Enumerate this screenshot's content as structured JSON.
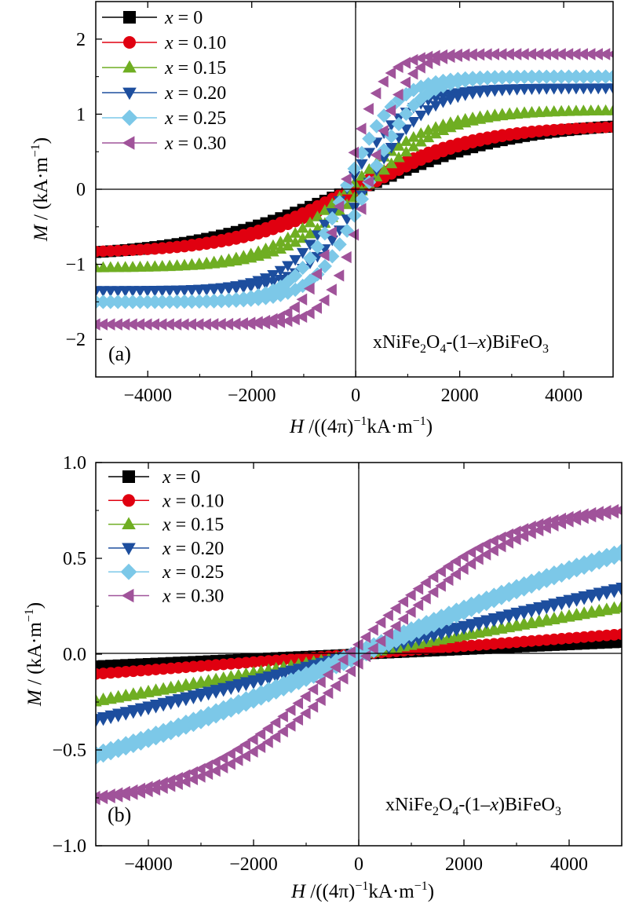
{
  "chart_data": [
    {
      "type": "scatter",
      "panel_label": "(a)",
      "annotation": {
        "base": "xNiFe",
        "s1": "2",
        "mid": "O",
        "s2": "4",
        "tail1": "-(1–",
        "xvar": "x",
        "tail2": ")BiFeO",
        "s3": "3"
      },
      "xlabel": {
        "var": "H",
        "text": " /((4π)",
        "sup": "−1",
        "unit": "kA·m",
        "unit_sup": "−1",
        "close": ")"
      },
      "ylabel": {
        "var": "M",
        "text": " / (kA·m",
        "sup": "−1",
        "close": ")"
      },
      "xlim": [
        -5000,
        4950
      ],
      "ylim": [
        -2.5,
        2.5
      ],
      "xticks": [
        -4000,
        -2000,
        0,
        2000,
        4000
      ],
      "xtick_labels": [
        "−4000",
        "−2000",
        "0",
        "2000",
        "4000"
      ],
      "yticks": [
        -2,
        -1,
        0,
        1,
        2
      ],
      "ytick_labels": [
        "−2",
        "−1",
        "0",
        "1",
        "2"
      ],
      "legend_position": "top-left",
      "series": [
        {
          "name": "x = 0",
          "legend_var": "x",
          "legend_value": " = 0",
          "color": "#000000",
          "marker": "square",
          "Ms": 0.9,
          "h0": 3000,
          "Hc": 100
        },
        {
          "name": "x = 0.10",
          "legend_var": "x",
          "legend_value": " = 0.10",
          "color": "#e00010",
          "marker": "circle",
          "Ms": 0.85,
          "h0": 2300,
          "Hc": 130
        },
        {
          "name": "x = 0.15",
          "legend_var": "x",
          "legend_value": " = 0.15",
          "color": "#6fae22",
          "marker": "triangle-up",
          "Ms": 1.05,
          "h0": 1600,
          "Hc": 150
        },
        {
          "name": "x = 0.20",
          "legend_var": "x",
          "legend_value": " = 0.20",
          "color": "#1d4e9e",
          "marker": "triangle-down",
          "Ms": 1.35,
          "h0": 1150,
          "Hc": 180
        },
        {
          "name": "x = 0.25",
          "legend_var": "x",
          "legend_value": " = 0.25",
          "color": "#7cc8e8",
          "marker": "diamond",
          "Ms": 1.5,
          "h0": 950,
          "Hc": 200
        },
        {
          "name": "x = 0.30",
          "legend_var": "x",
          "legend_value": " = 0.30",
          "color": "#a0539a",
          "marker": "triangle-left",
          "Ms": 1.8,
          "h0": 700,
          "Hc": 220
        }
      ]
    },
    {
      "type": "scatter",
      "panel_label": "(b)",
      "annotation": {
        "base": "xNiFe",
        "s1": "2",
        "mid": "O",
        "s2": "4",
        "tail1": "-(1–",
        "xvar": "x",
        "tail2": ")BiFeO",
        "s3": "3"
      },
      "xlabel": {
        "var": "H",
        "text": " /((4π)",
        "sup": "−1",
        "unit": "kA·m",
        "unit_sup": "−1",
        "close": ")"
      },
      "ylabel": {
        "var": "M",
        "text": " / (kA·m",
        "sup": "−1",
        "close": ")"
      },
      "xlim": [
        -5000,
        5000
      ],
      "ylim": [
        -1.0,
        1.0
      ],
      "xticks": [
        -4000,
        -2000,
        0,
        2000,
        4000
      ],
      "xtick_labels": [
        "−4000",
        "−2000",
        "0",
        "2000",
        "4000"
      ],
      "yticks": [
        -1.0,
        -0.5,
        0.0,
        0.5,
        1.0
      ],
      "ytick_labels": [
        "−1.0",
        "−0.5",
        "0.0",
        "0.5",
        "1.0"
      ],
      "legend_position": "top-left",
      "series": [
        {
          "name": "x = 0",
          "legend_var": "x",
          "legend_value": " = 0",
          "color": "#000000",
          "marker": "square",
          "Ms": 1.0,
          "h0": 80000,
          "Hc": 60
        },
        {
          "name": "x = 0.10",
          "legend_var": "x",
          "legend_value": " = 0.10",
          "color": "#e00010",
          "marker": "circle",
          "Ms": 1.0,
          "h0": 48000,
          "Hc": 80
        },
        {
          "name": "x = 0.15",
          "legend_var": "x",
          "legend_value": " = 0.15",
          "color": "#6fae22",
          "marker": "triangle-up",
          "Ms": 1.0,
          "h0": 20000,
          "Hc": 100
        },
        {
          "name": "x = 0.20",
          "legend_var": "x",
          "legend_value": " = 0.20",
          "color": "#1d4e9e",
          "marker": "triangle-down",
          "Ms": 1.0,
          "h0": 14000,
          "Hc": 120
        },
        {
          "name": "x = 0.25",
          "legend_var": "x",
          "legend_value": " = 0.25",
          "color": "#7cc8e8",
          "marker": "diamond",
          "Ms": 1.0,
          "h0": 8500,
          "Hc": 150
        },
        {
          "name": "x = 0.30",
          "legend_var": "x",
          "legend_value": " = 0.30",
          "color": "#a0539a",
          "marker": "triangle-left",
          "Ms": 0.8,
          "h0": 2900,
          "Hc": 180
        }
      ]
    }
  ]
}
